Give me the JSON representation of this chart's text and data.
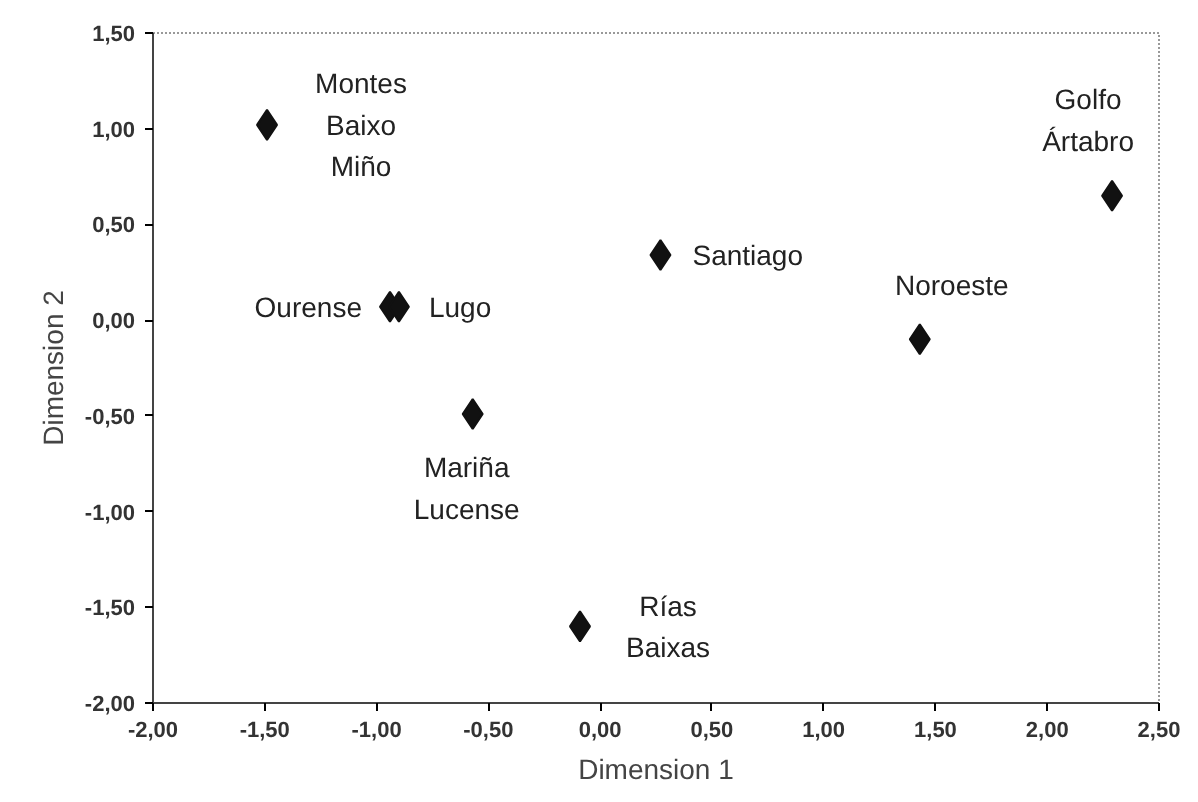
{
  "chart_data": {
    "type": "scatter",
    "xlabel": "Dimension 1",
    "ylabel": "Dimension 2",
    "x": [
      -1.49,
      -0.94,
      -0.9,
      -0.57,
      -0.09,
      0.27,
      1.43,
      2.29
    ],
    "values": [
      1.02,
      0.07,
      0.07,
      -0.49,
      -1.6,
      0.34,
      -0.1,
      0.65
    ],
    "color": "#111111",
    "marker": "diamond",
    "grid": false,
    "xlim": [
      -2,
      2.5
    ],
    "xticks": [
      {
        "value": -2,
        "label": "-2,00"
      },
      {
        "value": -1.5,
        "label": "-1,50"
      },
      {
        "value": -1,
        "label": "-1,00"
      },
      {
        "value": -0.5,
        "label": "-0,50"
      },
      {
        "value": 0,
        "label": "0,00"
      },
      {
        "value": 0.5,
        "label": "0,50"
      },
      {
        "value": 1,
        "label": "1,00"
      },
      {
        "value": 1.5,
        "label": "1,50"
      },
      {
        "value": 2,
        "label": "2,00"
      },
      {
        "value": 2.5,
        "label": "2,50"
      }
    ],
    "ylim": [
      -2,
      1.5
    ],
    "yticks": [
      {
        "value": -2,
        "label": "-2,00"
      },
      {
        "value": -1.5,
        "label": "-1,50"
      },
      {
        "value": -1,
        "label": "-1,00"
      },
      {
        "value": -0.5,
        "label": "-0,50"
      },
      {
        "value": 0,
        "label": "0,00"
      },
      {
        "value": 0.5,
        "label": "0,50"
      },
      {
        "value": 1,
        "label": "1,00"
      },
      {
        "value": 1.5,
        "label": "1,50"
      }
    ],
    "annotations": [
      {
        "text": "Montes\nBaixo\nMiño",
        "x": -1.49,
        "y": 1.02
      },
      {
        "text": "Ourense",
        "x": -0.94,
        "y": 0.07
      },
      {
        "text": "Lugo",
        "x": -0.9,
        "y": 0.07
      },
      {
        "text": "Mariña\nLucense",
        "x": -0.57,
        "y": -0.49
      },
      {
        "text": "Rías\nBaixas",
        "x": -0.09,
        "y": -1.6
      },
      {
        "text": "Santiago",
        "x": 0.27,
        "y": 0.34
      },
      {
        "text": "Noroeste",
        "x": 1.43,
        "y": -0.1
      },
      {
        "text": "Golfo\nÁrtabro",
        "x": 2.29,
        "y": 0.65
      }
    ]
  }
}
